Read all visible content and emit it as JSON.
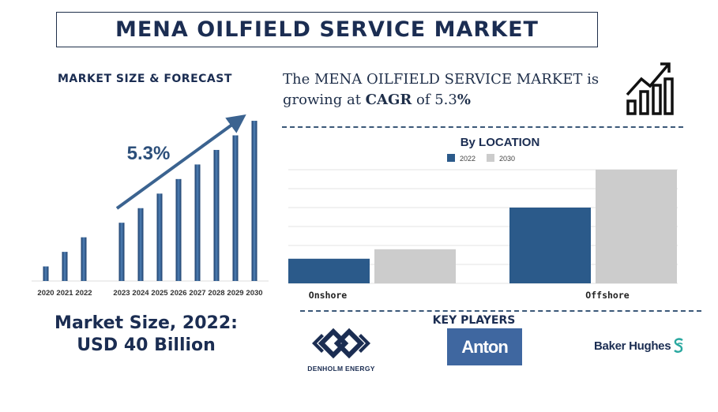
{
  "title": "MENA OILFIELD SERVICE MARKET",
  "left_heading": "MARKET SIZE & FORECAST",
  "intro": {
    "before": "The MENA OILFIELD SERVICE MARKET is growing at ",
    "cagr_word": "CAGR",
    "middle": " of 5.3",
    "pct": "%"
  },
  "market_size": {
    "line1": "Market Size, 2022:",
    "line2": "USD 40 Billion"
  },
  "key_players": {
    "heading": "KEY PLAYERS",
    "denholm": "DENHOLM ENERGY",
    "anton": "Anton",
    "baker": "Baker Hughes"
  },
  "icons": [
    "growth-trend-icon",
    "denholm-logo-icon",
    "baker-hughes-s-icon"
  ],
  "colors": {
    "navy": "#1b2d52",
    "bar_blue": "#2b5a8a",
    "bar_2030": "#cccccc",
    "arrow": "#3b6390"
  },
  "chart_data": [
    {
      "type": "bar",
      "title": "",
      "categories": [
        "2020",
        "2021",
        "2022",
        "2023",
        "2024",
        "2025",
        "2026",
        "2027",
        "2028",
        "2029",
        "2030"
      ],
      "values": [
        9,
        18,
        27,
        36,
        45,
        54,
        63,
        72,
        81,
        90,
        99
      ],
      "annotation": "5.3%",
      "ylim": [
        0,
        100
      ],
      "grid": false
    },
    {
      "type": "bar",
      "title": "By LOCATION",
      "categories": [
        "Onshore",
        "Offshore"
      ],
      "series": [
        {
          "name": "2022",
          "values": [
            13,
            40
          ]
        },
        {
          "name": "2030",
          "values": [
            18,
            60
          ]
        }
      ],
      "ylim": [
        0,
        60
      ],
      "grid": true,
      "legend": "top-center"
    }
  ]
}
